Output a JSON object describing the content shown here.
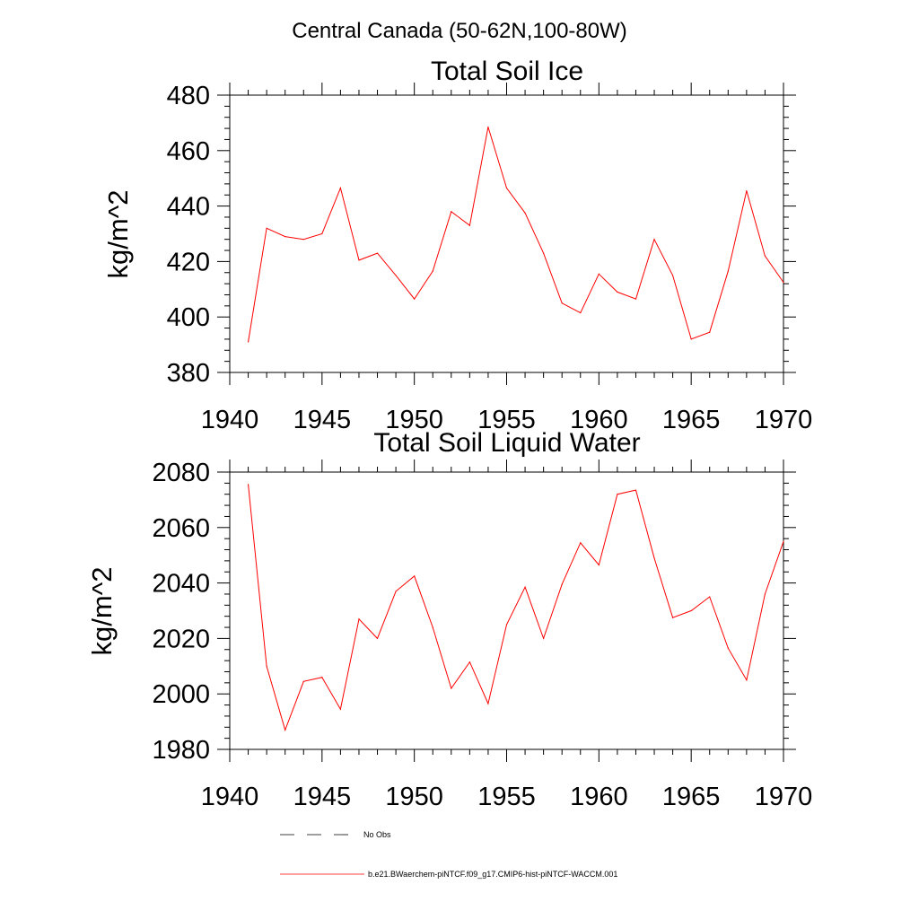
{
  "page_title": "Central Canada (50-62N,100-80W)",
  "legend": {
    "items": [
      {
        "label": "No Obs",
        "color": "#000000",
        "dash": "dashed"
      },
      {
        "label": "b.e21.BWaerchem-piNTCF.f09_g17.CMIP6-hist-piNTCF-WACCM.001",
        "color": "#ff0000",
        "dash": "solid"
      }
    ]
  },
  "chart_data": [
    {
      "type": "line",
      "title": "Total Soil Ice",
      "xlabel": "",
      "ylabel": "kg/m^2",
      "xlim": [
        1940,
        1970
      ],
      "ylim": [
        380,
        480
      ],
      "xticks": [
        1940,
        1945,
        1950,
        1955,
        1960,
        1965,
        1970
      ],
      "yticks": [
        380,
        400,
        420,
        440,
        460,
        480
      ],
      "grid": false,
      "series": [
        {
          "color": "#ff0000",
          "x": [
            1941,
            1942,
            1943,
            1944,
            1945,
            1946,
            1947,
            1948,
            1949,
            1950,
            1951,
            1952,
            1953,
            1954,
            1955,
            1956,
            1957,
            1958,
            1959,
            1960,
            1961,
            1962,
            1963,
            1964,
            1965,
            1966,
            1967,
            1968,
            1969,
            1970
          ],
          "y": [
            391,
            432,
            429,
            428,
            430,
            446.5,
            420.5,
            423,
            415,
            406.5,
            416.5,
            438,
            433,
            468.5,
            446.5,
            437.5,
            423,
            405,
            401.5,
            415.5,
            409,
            406.5,
            428,
            415,
            392,
            394.5,
            416.5,
            445.5,
            422,
            412.5
          ]
        }
      ]
    },
    {
      "type": "line",
      "title": "Total Soil Liquid Water",
      "xlabel": "",
      "ylabel": "kg/m^2",
      "xlim": [
        1940,
        1970
      ],
      "ylim": [
        1980,
        2080
      ],
      "xticks": [
        1940,
        1945,
        1950,
        1955,
        1960,
        1965,
        1970
      ],
      "yticks": [
        1980,
        2000,
        2020,
        2040,
        2060,
        2080
      ],
      "grid": false,
      "series": [
        {
          "color": "#ff0000",
          "x": [
            1941,
            1942,
            1943,
            1944,
            1945,
            1946,
            1947,
            1948,
            1949,
            1950,
            1951,
            1952,
            1953,
            1954,
            1955,
            1956,
            1957,
            1958,
            1959,
            1960,
            1961,
            1962,
            1963,
            1964,
            1965,
            1966,
            1967,
            1968,
            1969,
            1970
          ],
          "y": [
            2075.5,
            2010,
            1987,
            2004.5,
            2006,
            1994.5,
            2027,
            2020,
            2037,
            2042.5,
            2024,
            2002,
            2011.5,
            1996.5,
            2025,
            2038.5,
            2020,
            2039.5,
            2054.5,
            2046.5,
            2072,
            2073.5,
            2049,
            2027.5,
            2030,
            2035,
            2016.5,
            2005,
            2036,
            2055
          ]
        }
      ]
    }
  ]
}
